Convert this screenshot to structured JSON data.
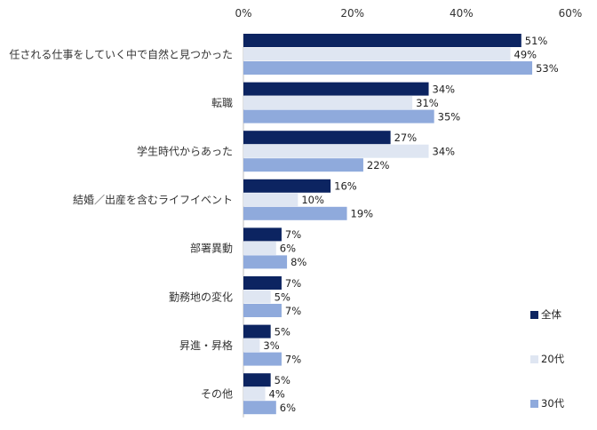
{
  "chart_data": {
    "type": "bar",
    "orientation": "horizontal",
    "categories": [
      "任される仕事をしていく中で自然と見つかった",
      "転職",
      "学生時代からあった",
      "結婚／出産を含むライフイベント",
      "部署異動",
      "勤務地の変化",
      "昇進・昇格",
      "その他"
    ],
    "series": [
      {
        "name": "全体",
        "color": "#0c2461",
        "values": [
          51,
          34,
          27,
          16,
          7,
          7,
          5,
          5
        ]
      },
      {
        "name": "20代",
        "color": "#dfe6f2",
        "values": [
          49,
          31,
          34,
          10,
          6,
          5,
          3,
          4
        ]
      },
      {
        "name": "30代",
        "color": "#8faadc",
        "values": [
          53,
          35,
          22,
          19,
          8,
          7,
          7,
          6
        ]
      }
    ],
    "xlim": [
      0,
      60
    ],
    "xticks": [
      "0%",
      "20%",
      "40%",
      "60%"
    ],
    "value_suffix": "%",
    "legend_position": "bottom-right",
    "grid": false
  }
}
